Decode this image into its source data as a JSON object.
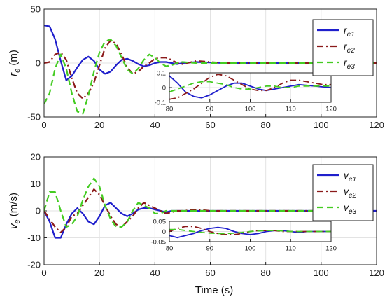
{
  "chart_data": [
    {
      "type": "line",
      "ylabel_main": "r",
      "ylabel_sub": "e",
      "ylabel_unit": " (m)",
      "xlabel": "",
      "xlim": [
        0,
        120
      ],
      "ylim": [
        -50,
        50
      ],
      "xticks": [
        "0",
        "20",
        "40",
        "60",
        "80",
        "100",
        "120"
      ],
      "yticks": [
        "50",
        "0",
        "-50"
      ],
      "grid": true,
      "legend_position": "top-right",
      "series": [
        {
          "name": "r",
          "sub": "e1",
          "color": "#1f1fcc",
          "dash": "solid",
          "x": [
            0,
            2,
            4,
            6,
            8,
            10,
            12,
            14,
            16,
            18,
            20,
            22,
            24,
            26,
            28,
            30,
            32,
            34,
            36,
            38,
            40,
            42,
            44,
            46,
            48,
            50,
            55,
            60,
            65,
            70,
            80,
            90,
            100,
            110,
            120
          ],
          "y": [
            35,
            34,
            22,
            2,
            -16,
            -12,
            -4,
            3,
            6,
            2,
            -6,
            -10,
            -8,
            -2,
            3,
            4,
            2,
            -1,
            -3,
            -2,
            0,
            1,
            1,
            0,
            -1,
            0,
            1,
            0.5,
            0,
            0,
            0,
            0,
            0,
            0,
            0
          ]
        },
        {
          "name": "r",
          "sub": "e2",
          "color": "#8b1a1a",
          "dash": "dashdot",
          "x": [
            0,
            2,
            4,
            6,
            8,
            10,
            12,
            14,
            16,
            18,
            20,
            22,
            24,
            26,
            28,
            30,
            32,
            34,
            36,
            38,
            40,
            42,
            44,
            46,
            48,
            50,
            55,
            60,
            65,
            70,
            80,
            90,
            100,
            110,
            120
          ],
          "y": [
            0,
            1,
            8,
            10,
            3,
            -14,
            -28,
            -33,
            -28,
            -18,
            -2,
            14,
            21,
            18,
            8,
            -4,
            -10,
            -8,
            -3,
            0,
            4,
            5,
            5,
            3,
            0,
            -1,
            2,
            1,
            0,
            0,
            0,
            0,
            0,
            0,
            0
          ]
        },
        {
          "name": "r",
          "sub": "e3",
          "color": "#44cc22",
          "dash": "dash",
          "x": [
            0,
            2,
            4,
            6,
            8,
            10,
            12,
            14,
            16,
            18,
            20,
            22,
            24,
            26,
            28,
            30,
            32,
            34,
            36,
            38,
            40,
            42,
            44,
            46,
            48,
            50,
            55,
            60,
            65,
            70,
            80,
            90,
            100,
            110,
            120
          ],
          "y": [
            -38,
            -28,
            -5,
            8,
            -5,
            -28,
            -45,
            -47,
            -30,
            -8,
            10,
            20,
            22,
            16,
            5,
            -6,
            -10,
            -5,
            3,
            8,
            5,
            0,
            -3,
            -2,
            0,
            1,
            0,
            0,
            0,
            0,
            0,
            0,
            0,
            0,
            0
          ]
        }
      ],
      "inset": {
        "xlim": [
          80,
          120
        ],
        "ylim": [
          -0.1,
          0.1
        ],
        "xticks": [
          "80",
          "90",
          "100",
          "110",
          "120"
        ],
        "yticks": [
          "0.1",
          "0",
          "-0.1"
        ],
        "series": [
          {
            "x": [
              80,
              82,
              84,
              86,
              88,
              90,
              92,
              94,
              96,
              98,
              100,
              102,
              104,
              106,
              108,
              110,
              112,
              114,
              116,
              118,
              120
            ],
            "y": [
              0.08,
              0.03,
              -0.03,
              -0.06,
              -0.07,
              -0.05,
              -0.02,
              0.01,
              0.03,
              0.03,
              0.01,
              -0.01,
              -0.02,
              -0.01,
              0.0,
              0.01,
              0.02,
              0.015,
              0.01,
              0.005,
              0.0
            ]
          },
          {
            "x": [
              80,
              82,
              84,
              86,
              88,
              90,
              92,
              94,
              96,
              98,
              100,
              102,
              104,
              106,
              108,
              110,
              112,
              114,
              116,
              118,
              120
            ],
            "y": [
              -0.08,
              -0.07,
              -0.04,
              -0.01,
              0.03,
              0.07,
              0.09,
              0.08,
              0.05,
              0.02,
              -0.01,
              -0.02,
              -0.02,
              0.0,
              0.03,
              0.05,
              0.05,
              0.04,
              0.03,
              0.02,
              0.02
            ]
          },
          {
            "x": [
              80,
              82,
              84,
              86,
              88,
              90,
              92,
              94,
              96,
              98,
              100,
              102,
              104,
              106,
              108,
              110,
              112,
              114,
              116,
              118,
              120
            ],
            "y": [
              -0.03,
              -0.01,
              0.01,
              0.03,
              0.04,
              0.04,
              0.03,
              0.02,
              0.0,
              -0.01,
              -0.01,
              0.0,
              0.01,
              0.01,
              0.0,
              0.0,
              0.01,
              0.01,
              0.01,
              0.01,
              0.01
            ]
          }
        ]
      }
    },
    {
      "type": "line",
      "ylabel_main": "v",
      "ylabel_sub": "e",
      "ylabel_unit": " (m/s)",
      "xlabel": "Time (s)",
      "xlim": [
        0,
        120
      ],
      "ylim": [
        -20,
        20
      ],
      "xticks": [
        "0",
        "20",
        "40",
        "60",
        "80",
        "100",
        "120"
      ],
      "yticks": [
        "20",
        "10",
        "0",
        "-10",
        "-20"
      ],
      "grid": true,
      "legend_position": "top-right",
      "series": [
        {
          "name": "v",
          "sub": "e1",
          "color": "#1f1fcc",
          "dash": "solid",
          "x": [
            0,
            2,
            4,
            6,
            8,
            10,
            12,
            14,
            16,
            18,
            20,
            22,
            24,
            26,
            28,
            30,
            32,
            34,
            36,
            38,
            40,
            42,
            44,
            46,
            48,
            50,
            55,
            60,
            65,
            70,
            80,
            90,
            100,
            110,
            120
          ],
          "y": [
            0,
            -4,
            -10,
            -10,
            -5,
            -1,
            1,
            -1,
            -4,
            -5,
            -2,
            2,
            3,
            1,
            -1,
            -2,
            -1,
            0.5,
            1,
            1,
            0.5,
            0,
            -0.5,
            0,
            0,
            0,
            0,
            0,
            0,
            0,
            0,
            0,
            0,
            0,
            0
          ]
        },
        {
          "name": "v",
          "sub": "e2",
          "color": "#8b1a1a",
          "dash": "dashdot",
          "x": [
            0,
            2,
            4,
            6,
            8,
            10,
            12,
            14,
            16,
            18,
            20,
            22,
            24,
            26,
            28,
            30,
            32,
            34,
            36,
            38,
            40,
            42,
            44,
            46,
            48,
            50,
            55,
            60,
            65,
            70,
            80,
            90,
            100,
            110,
            120
          ],
          "y": [
            0,
            -3,
            -6,
            -8,
            -6,
            -2,
            -1,
            2,
            5,
            8,
            6,
            2,
            -2,
            -5,
            -6,
            -4,
            -2,
            1,
            3,
            2,
            1,
            0,
            -1,
            -0.5,
            0,
            0,
            0.5,
            0,
            0,
            0,
            0,
            0,
            0,
            0,
            0
          ]
        },
        {
          "name": "v",
          "sub": "e3",
          "color": "#44cc22",
          "dash": "dash",
          "x": [
            0,
            2,
            4,
            6,
            8,
            10,
            12,
            14,
            16,
            18,
            20,
            22,
            24,
            26,
            28,
            30,
            32,
            34,
            36,
            38,
            40,
            42,
            44,
            46,
            48,
            50,
            55,
            60,
            65,
            70,
            80,
            90,
            100,
            110,
            120
          ],
          "y": [
            0,
            7,
            7,
            0,
            -6,
            -5,
            -2,
            4,
            9,
            12,
            9,
            2,
            -3,
            -6,
            -6,
            -4,
            0,
            3,
            2,
            1,
            -1,
            -1,
            0,
            0,
            0,
            0,
            0,
            0,
            0,
            0,
            0,
            0,
            0,
            0,
            0
          ]
        }
      ],
      "inset": {
        "xlim": [
          80,
          120
        ],
        "ylim": [
          -0.05,
          0.05
        ],
        "xticks": [
          "80",
          "90",
          "100",
          "110",
          "120"
        ],
        "yticks": [
          "0.05",
          "0",
          "-0.05"
        ],
        "series": [
          {
            "x": [
              80,
              82,
              84,
              86,
              88,
              90,
              92,
              94,
              96,
              98,
              100,
              102,
              104,
              106,
              108,
              110,
              112,
              114,
              116,
              118,
              120
            ],
            "y": [
              -0.02,
              -0.03,
              -0.02,
              -0.01,
              0.005,
              0.015,
              0.02,
              0.015,
              0.0,
              -0.01,
              -0.015,
              -0.01,
              0.0,
              0.005,
              0.005,
              0.0,
              -0.005,
              0.0,
              0.0,
              0.0,
              0.0
            ]
          },
          {
            "x": [
              80,
              82,
              84,
              86,
              88,
              90,
              92,
              94,
              96,
              98,
              100,
              102,
              104,
              106,
              108,
              110,
              112,
              114,
              116,
              118,
              120
            ],
            "y": [
              0.0,
              0.015,
              0.025,
              0.025,
              0.015,
              0.0,
              -0.01,
              -0.015,
              -0.015,
              -0.01,
              0.0,
              0.005,
              0.005,
              0.005,
              0.0,
              0.0,
              0.0,
              0.0,
              0.0,
              0.0,
              0.0
            ]
          },
          {
            "x": [
              80,
              82,
              84,
              86,
              88,
              90,
              92,
              94,
              96,
              98,
              100,
              102,
              104,
              106,
              108,
              110,
              112,
              114,
              116,
              118,
              120
            ],
            "y": [
              0.01,
              0.01,
              0.005,
              0.0,
              -0.005,
              -0.008,
              -0.01,
              -0.01,
              -0.008,
              -0.005,
              0.0,
              0.003,
              0.005,
              0.005,
              0.003,
              0.0,
              0.0,
              0.0,
              0.0,
              0.0,
              0.0
            ]
          }
        ]
      }
    }
  ]
}
